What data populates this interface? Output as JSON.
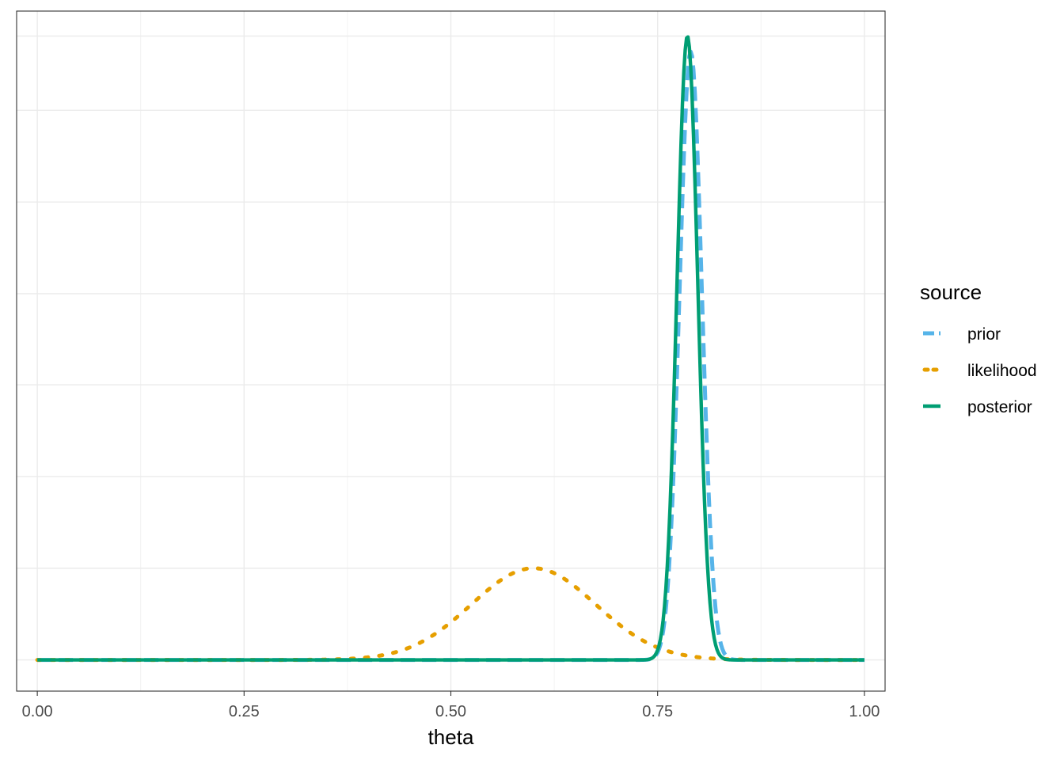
{
  "chart_data": {
    "type": "line",
    "title": "",
    "xlabel": "theta",
    "ylabel": "",
    "xlim": [
      -0.025,
      1.025
    ],
    "ylim": [
      -0.05,
      1.04
    ],
    "x_ticks": [
      0.0,
      0.25,
      0.5,
      0.75,
      1.0
    ],
    "x_tick_labels": [
      "0.00",
      "0.25",
      "0.50",
      "0.75",
      "1.00"
    ],
    "y_ticks_unlabeled": [
      0.0,
      0.147,
      0.294,
      0.441,
      0.587,
      0.734,
      0.881,
      1.0
    ],
    "grid": true,
    "legend": {
      "title": "source",
      "position": "right"
    },
    "series": [
      {
        "name": "prior",
        "color": "#56B4E9",
        "dash": "dashed",
        "curve": {
          "center": 0.79,
          "sd": 0.0135,
          "peak": 0.975
        }
      },
      {
        "name": "likelihood",
        "color": "#E69F00",
        "dash": "dotted",
        "curve": {
          "center": 0.6,
          "sd": 0.075,
          "peak": 0.147
        }
      },
      {
        "name": "posterior",
        "color": "#009E73",
        "dash": "solid",
        "curve": {
          "center": 0.786,
          "sd": 0.0125,
          "peak": 1.0
        }
      }
    ]
  }
}
